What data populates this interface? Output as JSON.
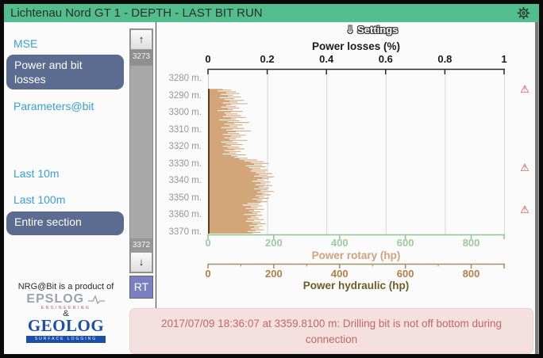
{
  "window": {
    "title": "Lichtenau Nord GT 1 - DEPTH - LAST BIT RUN",
    "settings_icon": "⇓",
    "settings_label": "Settings"
  },
  "sidebar": {
    "items": [
      {
        "label": "MSE",
        "type": "link"
      },
      {
        "label": "Power and bit losses",
        "type": "button",
        "active": true
      },
      {
        "label": "Parameters@bit",
        "type": "link"
      },
      {
        "label": "Last 10m",
        "type": "link"
      },
      {
        "label": "Last 100m",
        "type": "link"
      },
      {
        "label": "Entire section",
        "type": "button",
        "active": true
      }
    ],
    "footer": {
      "tagline": "NRG@Bit is a product of",
      "logo1": "EPSLOG",
      "logo1_sub": "ENGINEERING",
      "ampersand": "&",
      "logo2": "GEOLOG",
      "logo2_sub": "SURFACE LOGGING"
    }
  },
  "depth_scrollbar": {
    "up": "↑",
    "top_depth": "3273",
    "bottom_depth": "3372",
    "down": "↓",
    "rt": "RT"
  },
  "chart_data": {
    "type": "area",
    "orientation": "value-vs-depth",
    "top_axis": {
      "title": "Power losses (%)",
      "ticks": [
        "0",
        "0.2",
        "0.4",
        "0.6",
        "0.8",
        "1"
      ],
      "range": [
        0,
        1
      ]
    },
    "depth_axis": {
      "tick_labels": [
        "3280 m.",
        "3290 m.",
        "3300 m.",
        "3310 m.",
        "3320 m.",
        "3330 m.",
        "3340 m.",
        "3350 m.",
        "3360 m.",
        "3370 m."
      ],
      "range_m": [
        3277.5,
        3371
      ]
    },
    "rotary_axis": {
      "label": "Power rotary (hp)",
      "ticks": [
        "0",
        "200",
        "400",
        "600",
        "800"
      ],
      "range": [
        0,
        900
      ]
    },
    "hydraulic_axis": {
      "label": "Power hydraulic (hp)",
      "ticks": [
        "0",
        "200",
        "400",
        "600",
        "800"
      ],
      "range": [
        0,
        900
      ]
    },
    "grid": true,
    "series": [
      {
        "name": "power_rotary_hp",
        "color": "#d2a678",
        "edge_color": "#5e3c1c",
        "start_depth_m": 3285.5,
        "step_m": 0.5,
        "values_hp": [
          45,
          70,
          30,
          85,
          55,
          95,
          40,
          75,
          60,
          100,
          35,
          80,
          50,
          110,
          65,
          90,
          45,
          120,
          70,
          55,
          85,
          40,
          95,
          60,
          75,
          30,
          105,
          70,
          50,
          90,
          55,
          100,
          45,
          115,
          70,
          85,
          35,
          95,
          60,
          125,
          80,
          50,
          105,
          65,
          90,
          40,
          110,
          75,
          55,
          130,
          85,
          60,
          95,
          45,
          115,
          70,
          100,
          50,
          85,
          65,
          120,
          75,
          40,
          90,
          55,
          105,
          70,
          45,
          95,
          60,
          110,
          80,
          50,
          100,
          65,
          85,
          45,
          115,
          70,
          90,
          80,
          120,
          95,
          150,
          110,
          170,
          130,
          185,
          140,
          165,
          115,
          175,
          125,
          160,
          135,
          180,
          130,
          175,
          145,
          195,
          155,
          180,
          140,
          200,
          165,
          185,
          150,
          170,
          135,
          190,
          160,
          175,
          145,
          195,
          170,
          155,
          185,
          140,
          180,
          160,
          200,
          150,
          175,
          165,
          190,
          145,
          170,
          155,
          185,
          135,
          165,
          150,
          180,
          160,
          120,
          155,
          105,
          165,
          130,
          150,
          115,
          170,
          140,
          125,
          160,
          135,
          150,
          110,
          165,
          145,
          130,
          155,
          120,
          170,
          140,
          115,
          160,
          135,
          175,
          150,
          125,
          165,
          140,
          155,
          130,
          170,
          145,
          120,
          160,
          135
        ]
      }
    ],
    "alerts": [
      {
        "depth_m": 3285.8
      },
      {
        "depth_m": 3332.0
      },
      {
        "depth_m": 3356.5
      }
    ]
  },
  "alert_message": {
    "lines": [
      "2017/07/09 18:36:07 at 3359.8100 m: Drilling bit is not off bottom during",
      "connection"
    ]
  },
  "colors": {
    "titlebar_green": "#52be8d",
    "nav_button": "#5b6c90",
    "link_blue": "#3aa0d4",
    "series_tan": "#d2a678",
    "rotary_axis_green": "#8fc594",
    "rotary_label_tan": "#d0a27e",
    "hydraulic_axis_brown": "#b28049",
    "hydraulic_label_olive": "#6e5c28",
    "alert_red": "#d93a3a",
    "message_bg_pink": "#f5e0e0",
    "message_text": "#c4666c"
  }
}
